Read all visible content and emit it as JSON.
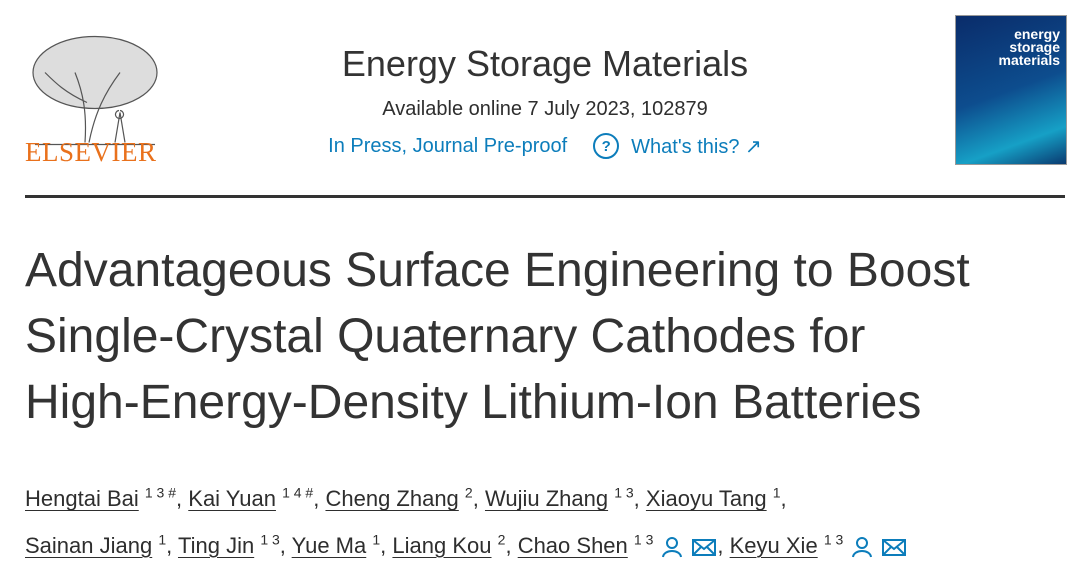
{
  "header": {
    "publisher": "ELSEVIER",
    "journal": "Energy Storage Materials",
    "available": "Available online 7 July 2023, 102879",
    "status": "In Press, Journal Pre-proof",
    "help": "What's this?",
    "cover": {
      "lines": [
        "energy",
        "storage",
        "materials"
      ]
    }
  },
  "article": {
    "title_lines": [
      "Advantageous Surface Engineering to Boost",
      "Single-Crystal Quaternary Cathodes for",
      "High-Energy-Density Lithium-Ion Batteries"
    ],
    "author_lines": [
      [
        {
          "name": "Hengtai Bai",
          "sup": "1 3 #",
          "sep": ","
        },
        {
          "name": "Kai Yuan",
          "sup": "1 4 #",
          "sep": ","
        },
        {
          "name": "Cheng Zhang",
          "sup": "2",
          "sep": ","
        },
        {
          "name": "Wujiu Zhang",
          "sup": "1 3",
          "sep": ","
        },
        {
          "name": "Xiaoyu Tang",
          "sup": "1",
          "sep": ","
        }
      ],
      [
        {
          "name": "Sainan Jiang",
          "sup": "1",
          "sep": ","
        },
        {
          "name": "Ting Jin",
          "sup": "1 3",
          "sep": ","
        },
        {
          "name": "Yue Ma",
          "sup": "1",
          "sep": ","
        },
        {
          "name": "Liang Kou",
          "sup": "2",
          "sep": ","
        },
        {
          "name": "Chao Shen",
          "sup": "1 3",
          "contact": true,
          "sep": ","
        },
        {
          "name": "Keyu Xie",
          "sup": "1 3",
          "contact": true
        }
      ]
    ]
  }
}
